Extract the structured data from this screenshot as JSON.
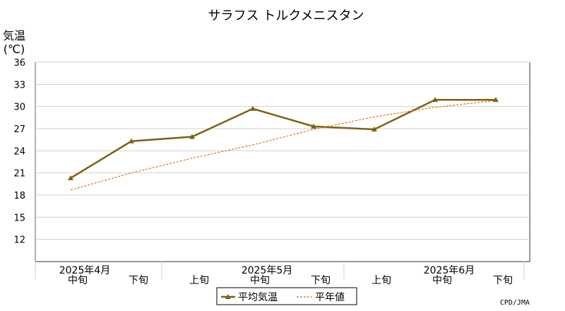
{
  "chart_data": {
    "type": "line",
    "title": "サラフス トルクメニスタン",
    "ylabel_line1": "気温",
    "ylabel_line2": "(℃)",
    "ylim": [
      9,
      36
    ],
    "yticks": [
      12,
      15,
      18,
      21,
      24,
      27,
      30,
      33,
      36
    ],
    "grid": true,
    "categories": [
      "中旬",
      "下旬",
      "上旬",
      "中旬",
      "下旬",
      "上旬",
      "中旬",
      "下旬"
    ],
    "month_labels": [
      {
        "label": "2025年4月",
        "index": 0
      },
      {
        "label": "2025年5月",
        "index": 3
      },
      {
        "label": "2025年6月",
        "index": 6
      }
    ],
    "series": [
      {
        "name": "平均気温",
        "color": "#7f6010",
        "style": "solid",
        "marker": "triangle",
        "values": [
          20.3,
          25.3,
          25.9,
          29.7,
          27.3,
          26.9,
          30.9,
          30.9
        ]
      },
      {
        "name": "平年値",
        "color": "#e07020",
        "style": "dashed",
        "marker": "none",
        "values": [
          18.7,
          21.0,
          23.0,
          24.8,
          26.9,
          28.6,
          29.9,
          30.8
        ]
      }
    ],
    "legend_position": "bottom-center",
    "credit": "CPD/JMA"
  }
}
